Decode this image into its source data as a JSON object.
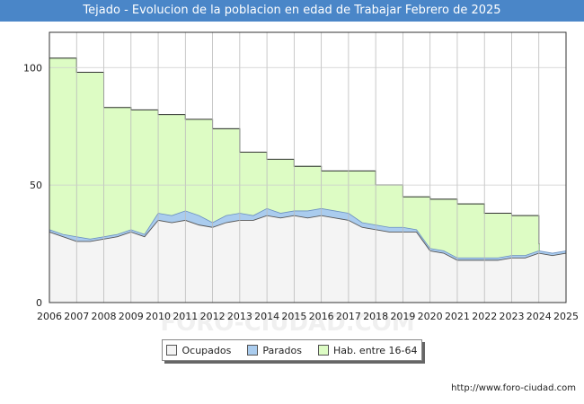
{
  "chart_data": {
    "type": "area",
    "title": "Tejado - Evolucion de la poblacion en edad de Trabajar Febrero de 2025",
    "xlabel": "",
    "ylabel": "",
    "xlim": [
      2006,
      2025
    ],
    "ylim": [
      0,
      115
    ],
    "y_ticks": [
      0,
      50,
      100
    ],
    "x_ticks": [
      "2006",
      "2007",
      "2008",
      "2009",
      "2010",
      "2011",
      "2012",
      "2013",
      "2014",
      "2015",
      "2016",
      "2017",
      "2018",
      "2019",
      "2020",
      "2021",
      "2022",
      "2023",
      "2024",
      "2025"
    ],
    "grid": true,
    "legend_position": "bottom",
    "colors": {
      "ocupados": "#f4f4f4",
      "parados": "#aaccee",
      "habitantes": "#ddfcc4",
      "habitantes_line": "#333333",
      "grid": "#cccccc"
    },
    "series": [
      {
        "name": "Hab. entre 16-64",
        "x": [
          2006,
          2007,
          2008,
          2009,
          2010,
          2011,
          2012,
          2013,
          2014,
          2015,
          2016,
          2017,
          2018,
          2019,
          2020,
          2021,
          2022,
          2023,
          2024
        ],
        "values": [
          104,
          98,
          83,
          82,
          80,
          78,
          74,
          64,
          61,
          58,
          56,
          56,
          50,
          45,
          44,
          42,
          38,
          37,
          25
        ]
      },
      {
        "name": "Parados",
        "x": [
          2006,
          2006.5,
          2007,
          2007.5,
          2008,
          2008.5,
          2009,
          2009.5,
          2010,
          2010.5,
          2011,
          2011.5,
          2012,
          2012.5,
          2013,
          2013.5,
          2014,
          2014.5,
          2015,
          2015.5,
          2016,
          2016.5,
          2017,
          2017.5,
          2018,
          2018.5,
          2019,
          2019.5,
          2020,
          2020.5,
          2021,
          2021.5,
          2022,
          2022.5,
          2023,
          2023.5,
          2024,
          2024.5,
          2025
        ],
        "values": [
          31,
          29,
          28,
          27,
          28,
          29,
          31,
          29,
          38,
          37,
          39,
          37,
          34,
          37,
          38,
          37,
          40,
          38,
          39,
          39,
          40,
          39,
          38,
          34,
          33,
          32,
          32,
          31,
          23,
          22,
          19,
          19,
          19,
          19,
          20,
          20,
          22,
          21,
          22
        ]
      },
      {
        "name": "Ocupados",
        "x": [
          2006,
          2006.5,
          2007,
          2007.5,
          2008,
          2008.5,
          2009,
          2009.5,
          2010,
          2010.5,
          2011,
          2011.5,
          2012,
          2012.5,
          2013,
          2013.5,
          2014,
          2014.5,
          2015,
          2015.5,
          2016,
          2016.5,
          2017,
          2017.5,
          2018,
          2018.5,
          2019,
          2019.5,
          2020,
          2020.5,
          2021,
          2021.5,
          2022,
          2022.5,
          2023,
          2023.5,
          2024,
          2024.5,
          2025
        ],
        "values": [
          30,
          28,
          26,
          26,
          27,
          28,
          30,
          28,
          35,
          34,
          35,
          33,
          32,
          34,
          35,
          35,
          37,
          36,
          37,
          36,
          37,
          36,
          35,
          32,
          31,
          30,
          30,
          30,
          22,
          21,
          18,
          18,
          18,
          18,
          19,
          19,
          21,
          20,
          21
        ]
      }
    ]
  },
  "legend": {
    "ocupados": "Ocupados",
    "parados": "Parados",
    "habitantes": "Hab. entre 16-64"
  },
  "footer_url": "http://www.foro-ciudad.com",
  "watermark": "FORO-CIUDAD.COM"
}
